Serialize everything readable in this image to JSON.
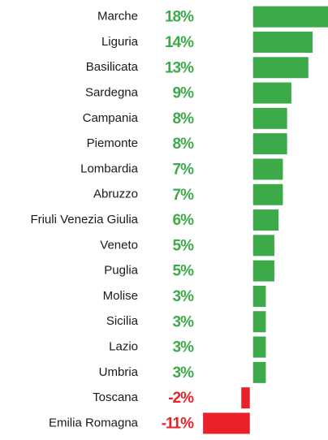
{
  "chart_data": {
    "type": "bar",
    "orientation": "horizontal",
    "categories": [
      "Marche",
      "Liguria",
      "Basilicata",
      "Sardegna",
      "Campania",
      "Piemonte",
      "Lombardia",
      "Abruzzo",
      "Friuli Venezia Giulia",
      "Veneto",
      "Puglia",
      "Molise",
      "Sicilia",
      "Lazio",
      "Umbria",
      "Toscana",
      "Emilia Romagna"
    ],
    "values": [
      18,
      14,
      13,
      9,
      8,
      8,
      7,
      7,
      6,
      5,
      5,
      3,
      3,
      3,
      3,
      -2,
      -11
    ],
    "value_labels": [
      "18%",
      "14%",
      "13%",
      "9%",
      "8%",
      "8%",
      "7%",
      "7%",
      "6%",
      "5%",
      "5%",
      "3%",
      "3%",
      "3%",
      "3%",
      "-2%",
      "-11%"
    ],
    "positive_color": "#3daa4a",
    "negative_color": "#e8212a",
    "xlim": [
      -11.4,
      18
    ]
  }
}
